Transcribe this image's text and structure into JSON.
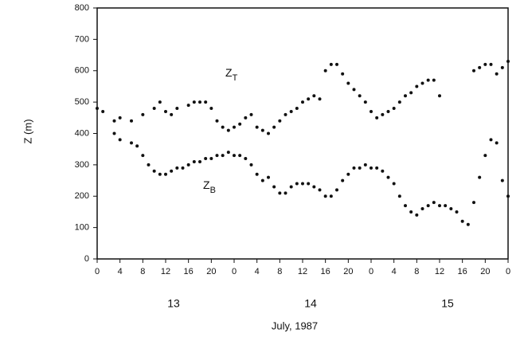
{
  "chart_data": {
    "type": "scatter",
    "x_label": "July, 1987",
    "y_label": "Z (m)",
    "day_labels": [
      "13",
      "14",
      "15"
    ],
    "xlim": [
      0,
      72
    ],
    "xticks": [
      0,
      4,
      8,
      12,
      16,
      20,
      {
        "value": 24,
        "label": "0"
      },
      {
        "value": 28,
        "label": "4"
      },
      {
        "value": 32,
        "label": "8"
      },
      {
        "value": 36,
        "label": "12"
      },
      {
        "value": 40,
        "label": "16"
      },
      {
        "value": 44,
        "label": "20"
      },
      {
        "value": 48,
        "label": "0"
      },
      {
        "value": 52,
        "label": "4"
      },
      {
        "value": 56,
        "label": "8"
      },
      {
        "value": 60,
        "label": "12"
      },
      {
        "value": 64,
        "label": "16"
      },
      {
        "value": 68,
        "label": "20"
      },
      {
        "value": 72,
        "label": "0"
      }
    ],
    "ylim": [
      0,
      800
    ],
    "yticks": [
      0,
      100,
      200,
      300,
      400,
      500,
      600,
      700,
      800
    ],
    "series": [
      {
        "name": "Z",
        "subscript": "T",
        "color": "#111111",
        "x": [
          0,
          1,
          3,
          4,
          6,
          8,
          10,
          11,
          12,
          13,
          14,
          16,
          17,
          18,
          19,
          20,
          21,
          22,
          23,
          24,
          25,
          26,
          27,
          28,
          29,
          30,
          31,
          32,
          33,
          34,
          35,
          36,
          37,
          38,
          39,
          40,
          41,
          42,
          43,
          44,
          45,
          46,
          47,
          48,
          49,
          50,
          51,
          52,
          53,
          54,
          55,
          56,
          57,
          58,
          59,
          60,
          66,
          67,
          68,
          69,
          70,
          71,
          72
        ],
        "values": [
          480,
          470,
          440,
          450,
          440,
          460,
          480,
          500,
          470,
          460,
          480,
          490,
          500,
          500,
          500,
          480,
          440,
          420,
          410,
          420,
          430,
          450,
          460,
          420,
          410,
          400,
          420,
          440,
          460,
          470,
          480,
          500,
          510,
          520,
          510,
          600,
          620,
          620,
          590,
          560,
          540,
          520,
          500,
          470,
          450,
          460,
          470,
          480,
          500,
          520,
          530,
          550,
          560,
          570,
          570,
          520,
          600,
          610,
          620,
          620,
          590,
          610,
          630
        ]
      },
      {
        "name": "Z",
        "subscript": "B",
        "color": "#111111",
        "x": [
          3,
          4,
          6,
          7,
          8,
          9,
          10,
          11,
          12,
          13,
          14,
          15,
          16,
          17,
          18,
          19,
          20,
          21,
          22,
          23,
          24,
          25,
          26,
          27,
          28,
          29,
          30,
          31,
          32,
          33,
          34,
          35,
          36,
          37,
          38,
          39,
          40,
          41,
          42,
          43,
          44,
          45,
          46,
          47,
          48,
          49,
          50,
          51,
          52,
          53,
          54,
          55,
          56,
          57,
          58,
          59,
          60,
          61,
          62,
          63,
          64,
          65,
          66,
          67,
          68,
          69,
          70,
          71,
          72
        ],
        "values": [
          400,
          380,
          370,
          360,
          330,
          300,
          280,
          270,
          270,
          280,
          290,
          290,
          300,
          310,
          310,
          320,
          320,
          330,
          330,
          340,
          330,
          330,
          320,
          300,
          270,
          250,
          260,
          230,
          210,
          210,
          230,
          240,
          240,
          240,
          230,
          220,
          200,
          200,
          220,
          250,
          270,
          290,
          290,
          300,
          290,
          290,
          280,
          260,
          240,
          200,
          170,
          150,
          140,
          160,
          170,
          180,
          170,
          170,
          160,
          150,
          120,
          110,
          180,
          260,
          330,
          380,
          370,
          250,
          200
        ]
      }
    ]
  }
}
